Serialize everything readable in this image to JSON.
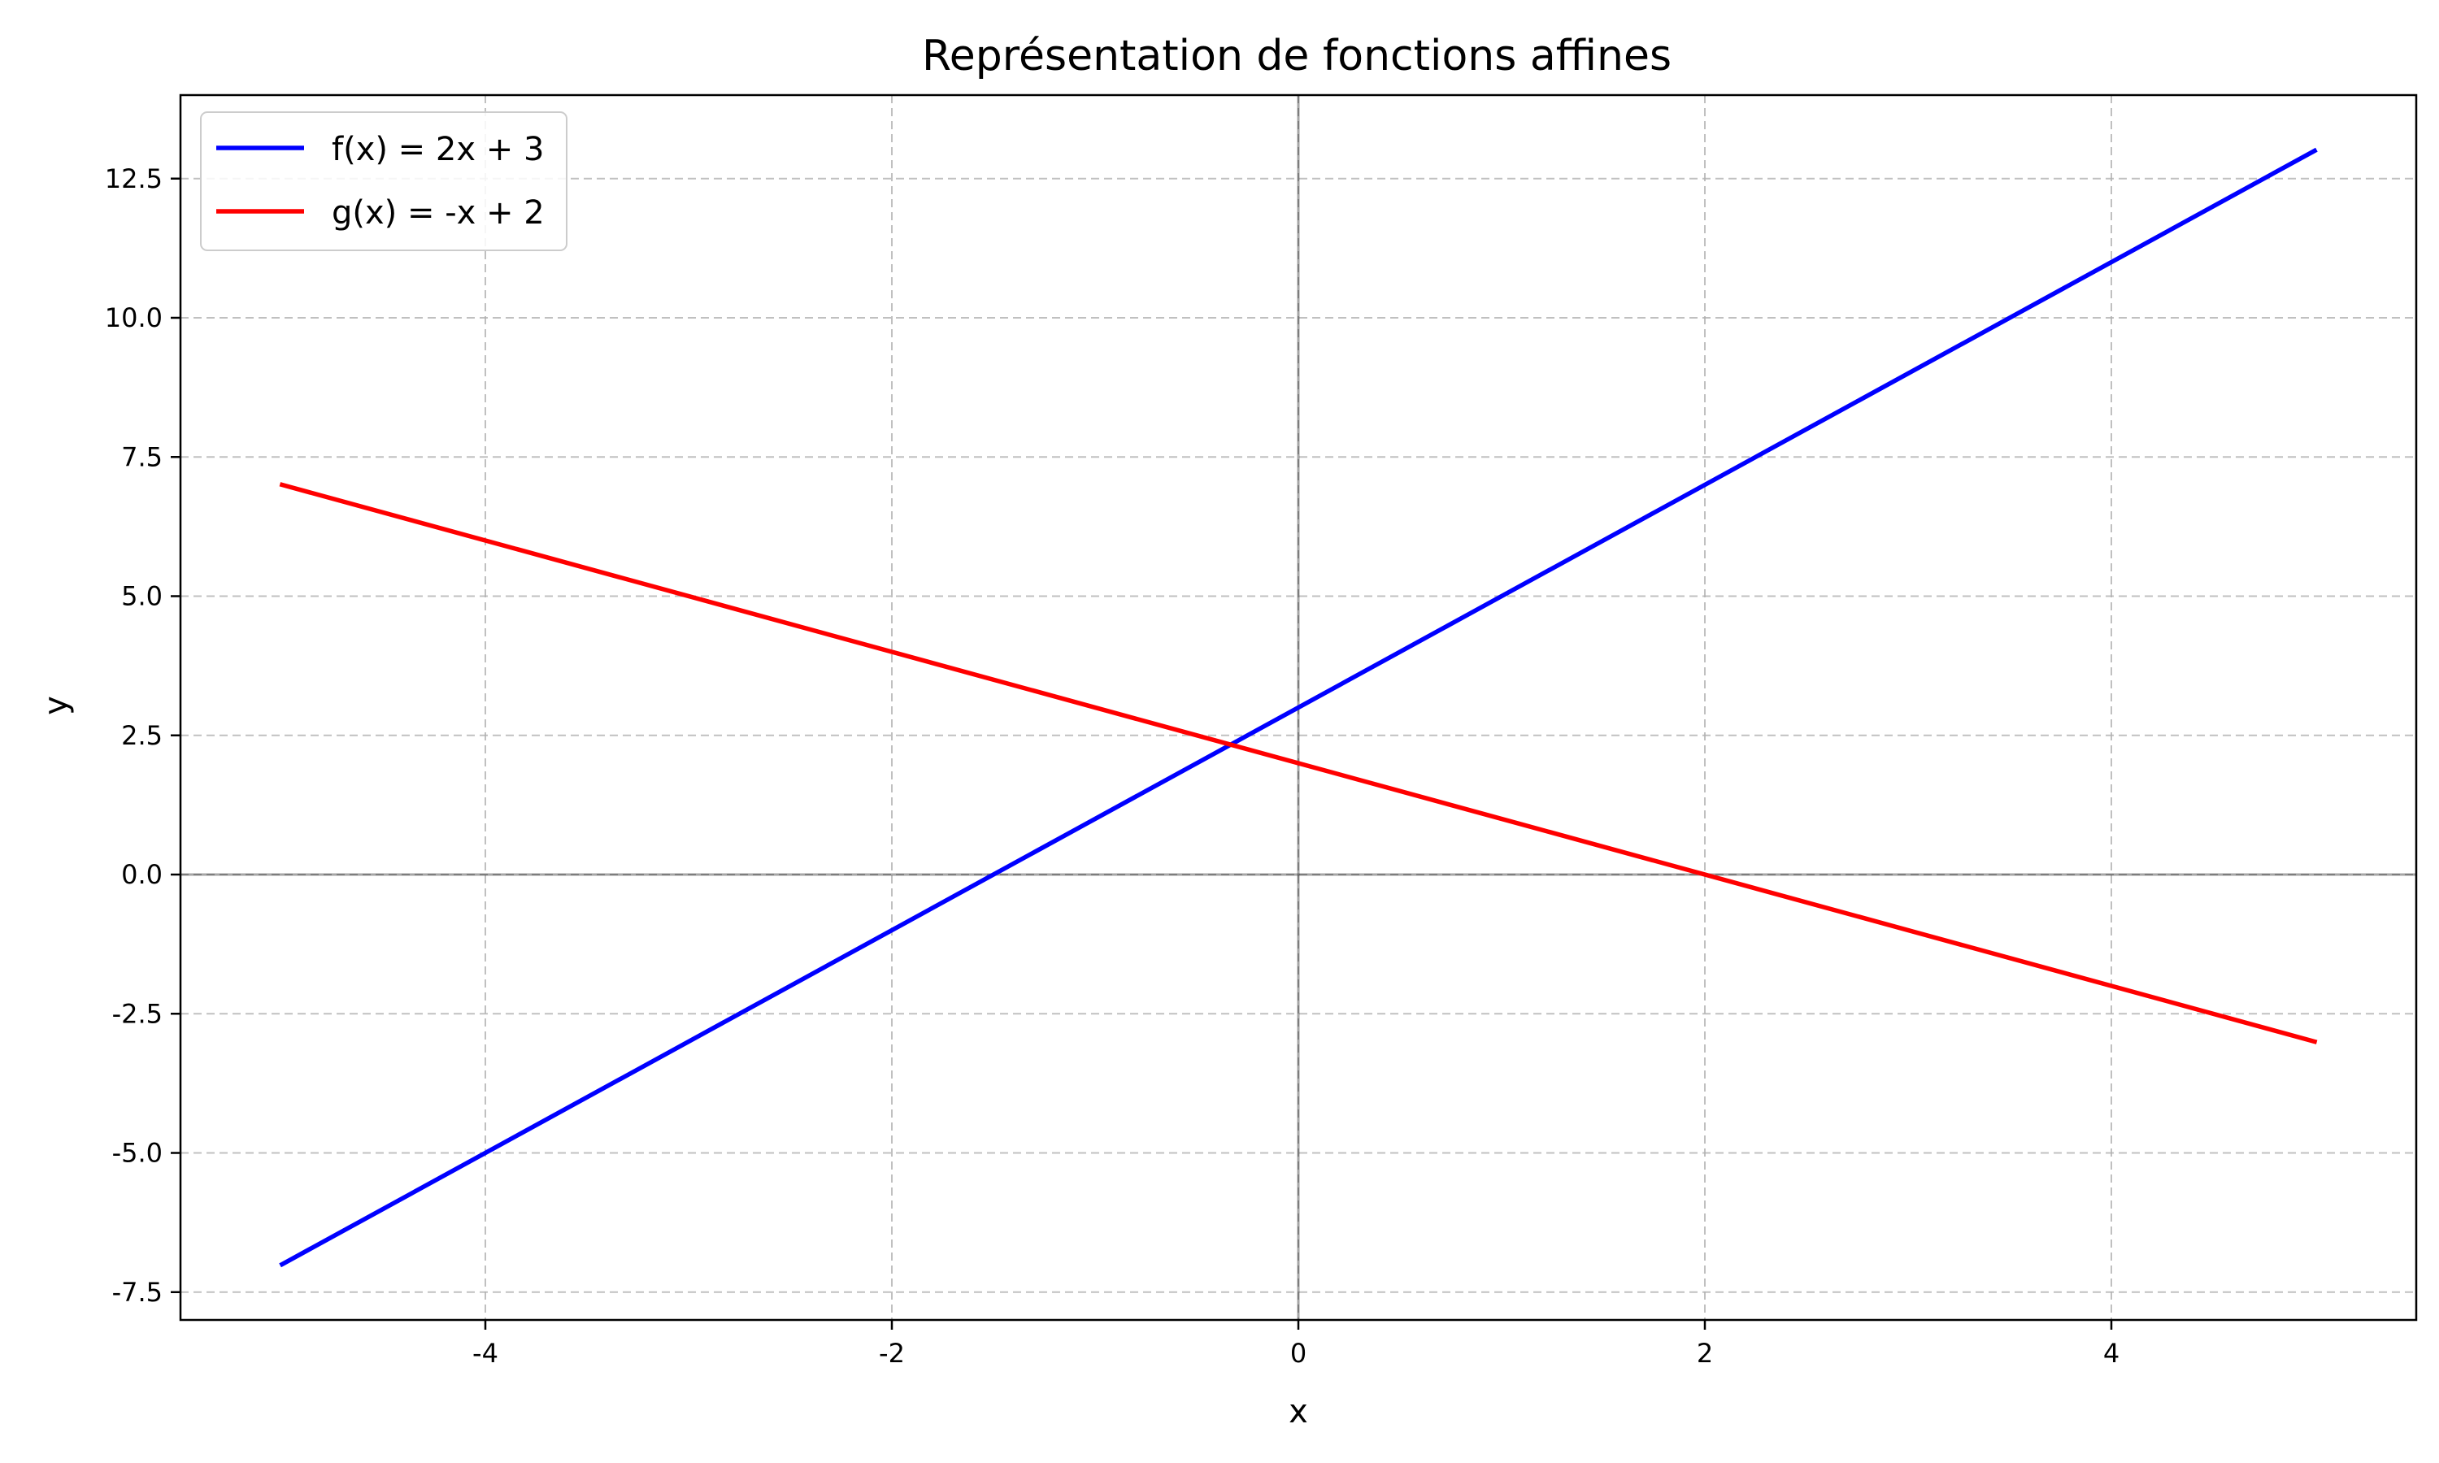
{
  "chart_data": {
    "type": "line",
    "title": "Représentation de fonctions affines",
    "xlabel": "x",
    "ylabel": "y",
    "xlim": [
      -5.5,
      5.5
    ],
    "ylim": [
      -8.0,
      14.0
    ],
    "xticks": [
      -4,
      -2,
      0,
      2,
      4
    ],
    "xtick_labels": [
      "-4",
      "-2",
      "0",
      "2",
      "4"
    ],
    "yticks": [
      -7.5,
      -5.0,
      -2.5,
      0.0,
      2.5,
      5.0,
      7.5,
      10.0,
      12.5
    ],
    "ytick_labels": [
      "-7.5",
      "-5.0",
      "-2.5",
      "0.0",
      "2.5",
      "5.0",
      "7.5",
      "10.0",
      "12.5"
    ],
    "grid": true,
    "reference_lines": {
      "x": 0,
      "y": 0
    },
    "legend_position": "top-left",
    "series": [
      {
        "name": "f(x) = 2x + 3",
        "color": "#0000ff",
        "x": [
          -5,
          5
        ],
        "y": [
          -7,
          13
        ]
      },
      {
        "name": "g(x) = -x + 2",
        "color": "#ff0000",
        "x": [
          -5,
          5
        ],
        "y": [
          7,
          -3
        ]
      }
    ]
  }
}
